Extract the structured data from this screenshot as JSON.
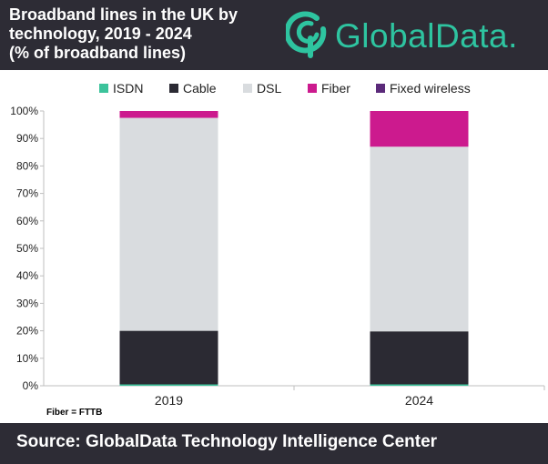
{
  "header": {
    "title_lines": [
      "Broadband lines in the UK by",
      "technology, 2019 - 2024",
      "(% of broadband lines)"
    ],
    "logo_text": "GlobalData.",
    "logo_icon": "globaldata-logo-icon"
  },
  "note": "Fiber = FTTB",
  "footer": {
    "source": "Source:  GlobalData Technology Intelligence Center"
  },
  "colors": {
    "header_bg": "#2d2c35",
    "accent": "#2ec4a0",
    "ISDN": "#3cc39b",
    "Cable": "#2b2a33",
    "DSL": "#d9dcdf",
    "Fiber": "#cc1a8e",
    "Fixed wireless": "#5b2a7a"
  },
  "chart_data": {
    "type": "bar",
    "stacked": true,
    "categories": [
      "2019",
      "2024"
    ],
    "series": [
      {
        "name": "ISDN",
        "values": [
          0.5,
          0.5
        ]
      },
      {
        "name": "Cable",
        "values": [
          19.5,
          19.3
        ]
      },
      {
        "name": "DSL",
        "values": [
          77.5,
          67.2
        ]
      },
      {
        "name": "Fiber",
        "values": [
          2.5,
          13.0
        ]
      },
      {
        "name": "Fixed wireless",
        "values": [
          0.0,
          0.0
        ]
      }
    ],
    "ylim": [
      0,
      100
    ],
    "yticks": [
      "0%",
      "10%",
      "20%",
      "30%",
      "40%",
      "50%",
      "60%",
      "70%",
      "80%",
      "90%",
      "100%"
    ],
    "legend_position": "top",
    "grid": false
  }
}
